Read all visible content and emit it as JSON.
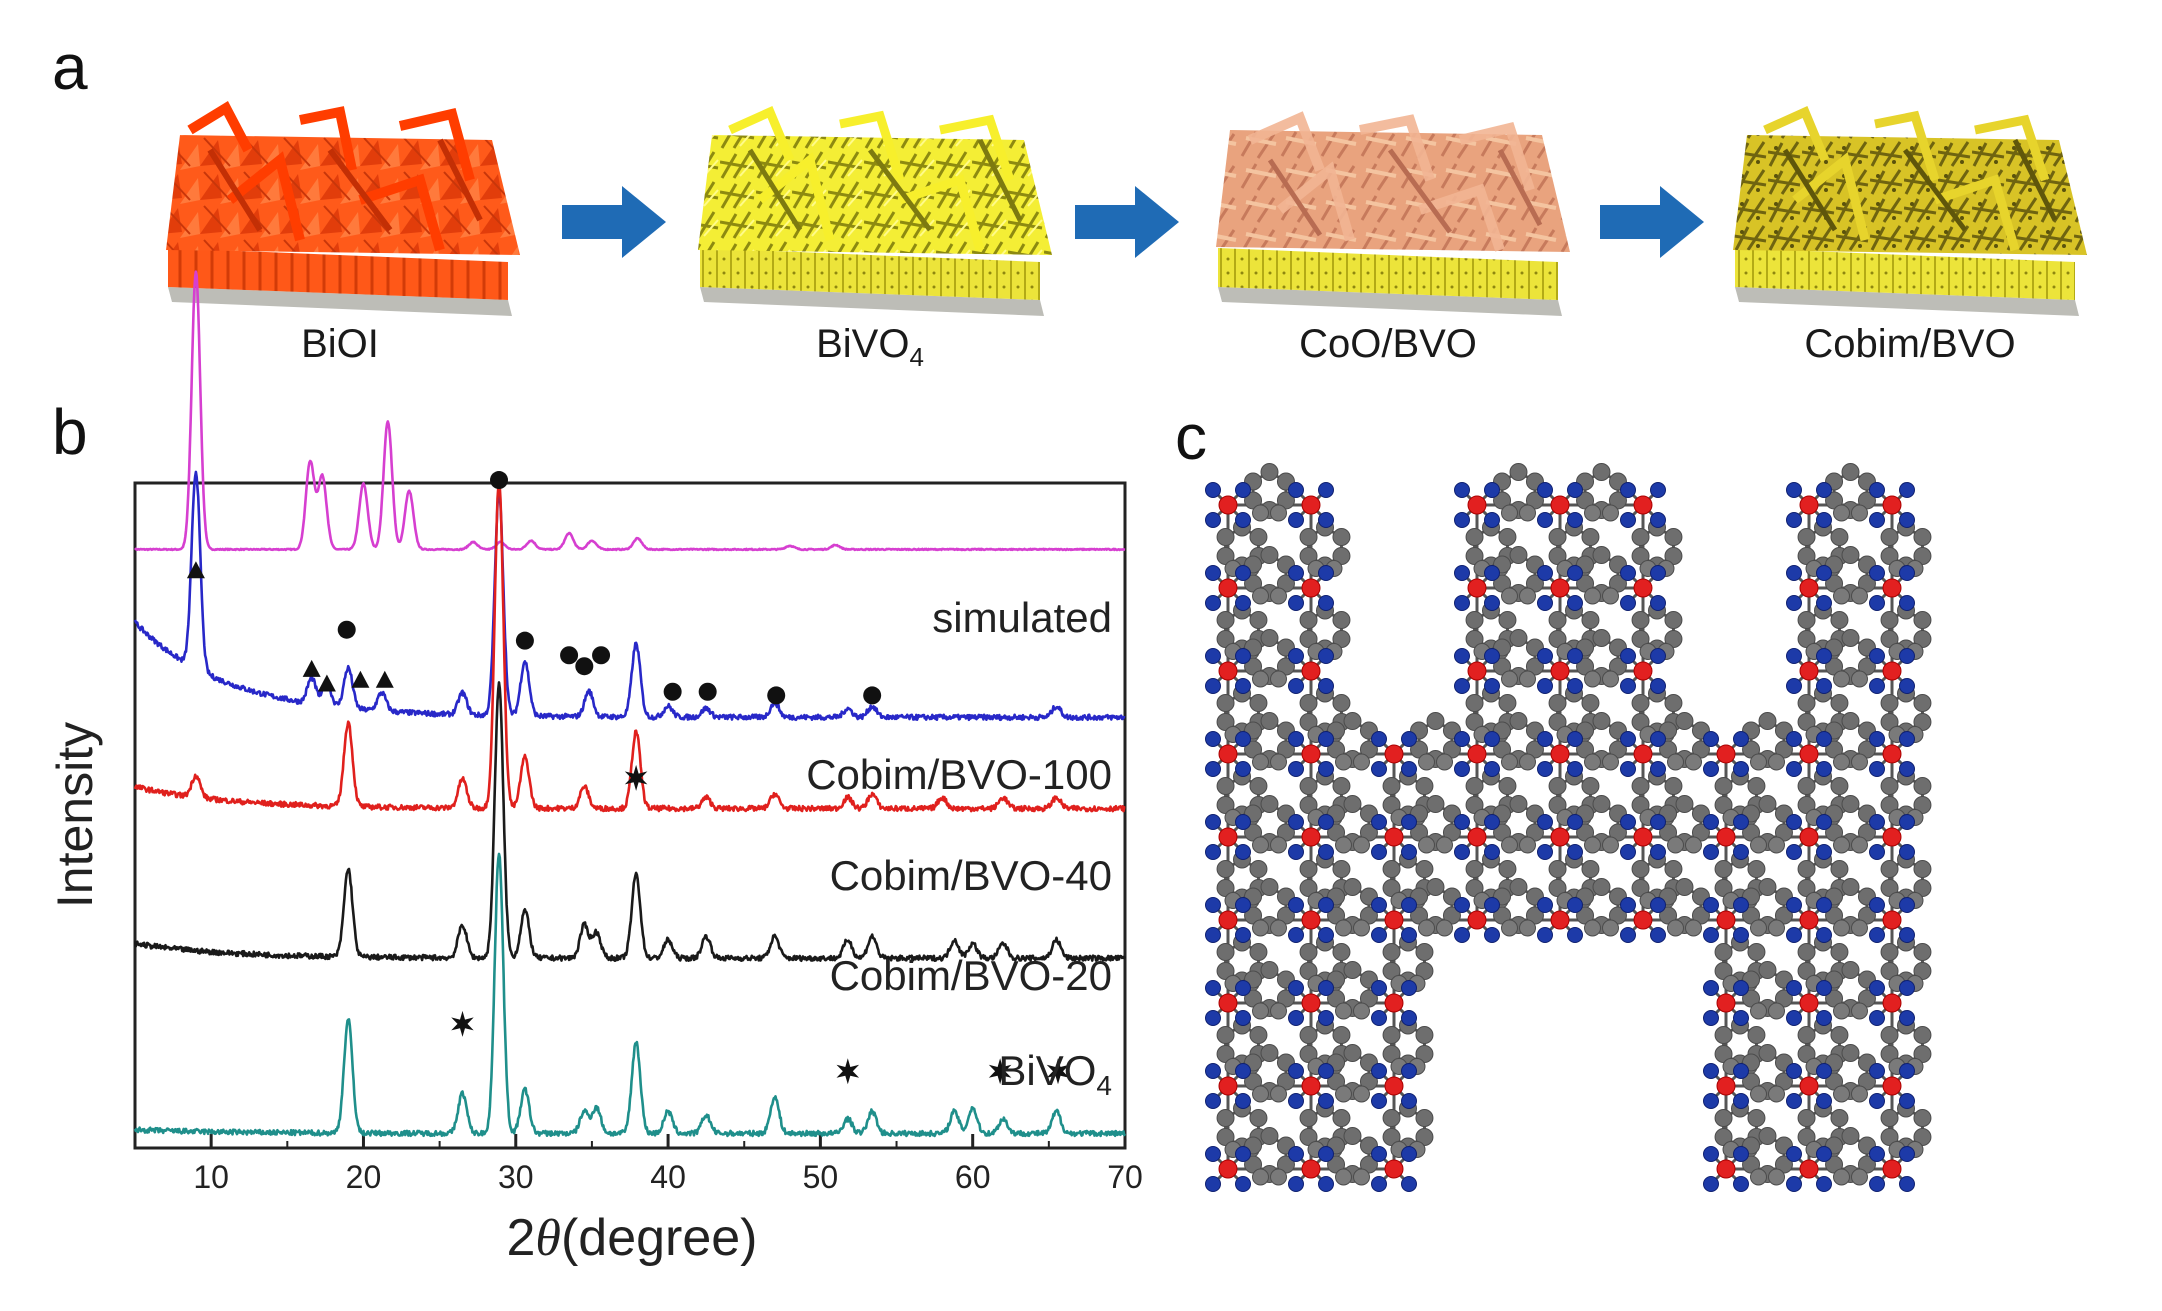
{
  "panels": {
    "a": "a",
    "b": "b",
    "c": "c"
  },
  "panel_a": {
    "steps": [
      {
        "label": "BiOI",
        "sub": ""
      },
      {
        "label": "BiVO",
        "sub": "4"
      },
      {
        "label": "CoO/BVO",
        "sub": ""
      },
      {
        "label": "Cobim/BVO",
        "sub": ""
      }
    ],
    "colors": {
      "bioi": "#ff4f12",
      "bivo4": "#f1ea2a",
      "coo": "#e8a07a",
      "cobim": "#d6c225",
      "arrow": "#1f6bb5",
      "substrate": "#bdbdb7"
    }
  },
  "chart_data": {
    "type": "line",
    "title": "",
    "xlabel_prefix": "2",
    "xlabel_theta": "θ",
    "xlabel_suffix": "(degree)",
    "ylabel": "Intensity",
    "xlim": [
      5,
      70
    ],
    "xticks": [
      10,
      20,
      30,
      40,
      50,
      60,
      70
    ],
    "y_ticks_shown": false,
    "series": [
      {
        "name": "simulated",
        "color": "#d63fd0",
        "offset": 8.2,
        "baseline_slope": 0,
        "peaks": [
          [
            9.0,
            3.8
          ],
          [
            16.5,
            1.2
          ],
          [
            17.3,
            1.0
          ],
          [
            20.0,
            0.9
          ],
          [
            21.6,
            1.75
          ],
          [
            23.0,
            0.8
          ],
          [
            27.2,
            0.1
          ],
          [
            29.0,
            0.1
          ],
          [
            31.0,
            0.12
          ],
          [
            33.5,
            0.22
          ],
          [
            35.0,
            0.12
          ],
          [
            38.0,
            0.15
          ],
          [
            48.0,
            0.05
          ],
          [
            51.0,
            0.06
          ]
        ]
      },
      {
        "name": "Cobim/BVO-100",
        "color": "#2828c8",
        "offset": 5.9,
        "baseline_slope": 1.3,
        "peaks": [
          [
            9.0,
            2.7
          ],
          [
            16.6,
            0.35
          ],
          [
            17.6,
            0.3
          ],
          [
            19.0,
            0.55
          ],
          [
            21.2,
            0.25
          ],
          [
            26.5,
            0.3
          ],
          [
            28.9,
            3.05
          ],
          [
            30.6,
            0.75
          ],
          [
            34.8,
            0.35
          ],
          [
            37.9,
            1.0
          ],
          [
            40.0,
            0.15
          ],
          [
            42.5,
            0.12
          ],
          [
            47.0,
            0.2
          ],
          [
            51.8,
            0.12
          ],
          [
            53.4,
            0.15
          ],
          [
            65.5,
            0.15
          ]
        ]
      },
      {
        "name": "Cobim/BVO-40",
        "color": "#e0201d",
        "offset": 4.65,
        "baseline_slope": 0.3,
        "peaks": [
          [
            9.0,
            0.3
          ],
          [
            19.0,
            1.15
          ],
          [
            26.5,
            0.4
          ],
          [
            28.9,
            4.5
          ],
          [
            30.6,
            0.7
          ],
          [
            34.5,
            0.3
          ],
          [
            37.9,
            1.05
          ],
          [
            42.5,
            0.15
          ],
          [
            47.0,
            0.2
          ],
          [
            51.8,
            0.15
          ],
          [
            53.4,
            0.2
          ],
          [
            58.0,
            0.15
          ],
          [
            62.0,
            0.15
          ],
          [
            65.5,
            0.15
          ]
        ]
      },
      {
        "name": "Cobim/BVO-20",
        "color": "#1a1a1a",
        "offset": 2.6,
        "baseline_slope": 0.2,
        "peaks": [
          [
            19.0,
            1.2
          ],
          [
            26.5,
            0.45
          ],
          [
            28.9,
            3.75
          ],
          [
            30.6,
            0.65
          ],
          [
            34.5,
            0.45
          ],
          [
            35.3,
            0.35
          ],
          [
            37.9,
            1.15
          ],
          [
            40.0,
            0.25
          ],
          [
            42.5,
            0.3
          ],
          [
            47.0,
            0.3
          ],
          [
            51.8,
            0.25
          ],
          [
            53.4,
            0.3
          ],
          [
            58.8,
            0.25
          ],
          [
            60.0,
            0.2
          ],
          [
            62.0,
            0.2
          ],
          [
            65.5,
            0.25
          ]
        ]
      },
      {
        "name_main": "BiVO",
        "name_sub": "4",
        "color": "#1f8f8b",
        "offset": 0.2,
        "baseline_slope": 0.05,
        "peaks": [
          [
            19.0,
            1.55
          ],
          [
            26.5,
            0.55
          ],
          [
            28.9,
            3.85
          ],
          [
            30.6,
            0.6
          ],
          [
            34.5,
            0.3
          ],
          [
            35.3,
            0.35
          ],
          [
            37.9,
            1.25
          ],
          [
            40.0,
            0.3
          ],
          [
            42.5,
            0.25
          ],
          [
            47.0,
            0.5
          ],
          [
            51.8,
            0.2
          ],
          [
            53.4,
            0.3
          ],
          [
            58.8,
            0.3
          ],
          [
            60.0,
            0.35
          ],
          [
            62.0,
            0.2
          ],
          [
            65.5,
            0.3
          ]
        ]
      }
    ],
    "markers": {
      "triangle": [
        [
          9.0,
          7.9
        ],
        [
          16.6,
          6.55
        ],
        [
          17.6,
          6.35
        ],
        [
          19.8,
          6.4
        ],
        [
          21.4,
          6.4
        ]
      ],
      "circle": [
        [
          18.9,
          7.1
        ],
        [
          28.9,
          9.15
        ],
        [
          30.6,
          6.95
        ],
        [
          33.5,
          6.75
        ],
        [
          34.5,
          6.6
        ],
        [
          35.6,
          6.75
        ],
        [
          40.3,
          6.25
        ],
        [
          42.6,
          6.25
        ],
        [
          47.1,
          6.2
        ],
        [
          53.4,
          6.2
        ]
      ],
      "star": [
        [
          26.5,
          1.7
        ],
        [
          37.9,
          5.07
        ],
        [
          51.8,
          1.05
        ],
        [
          61.8,
          1.05
        ],
        [
          65.6,
          1.05
        ]
      ]
    }
  },
  "panel_c": {
    "colors": {
      "cobalt": "#e22020",
      "nitrogen": "#1d3aa8",
      "carbon": "#6e6e6e",
      "bond": "#555555"
    }
  }
}
